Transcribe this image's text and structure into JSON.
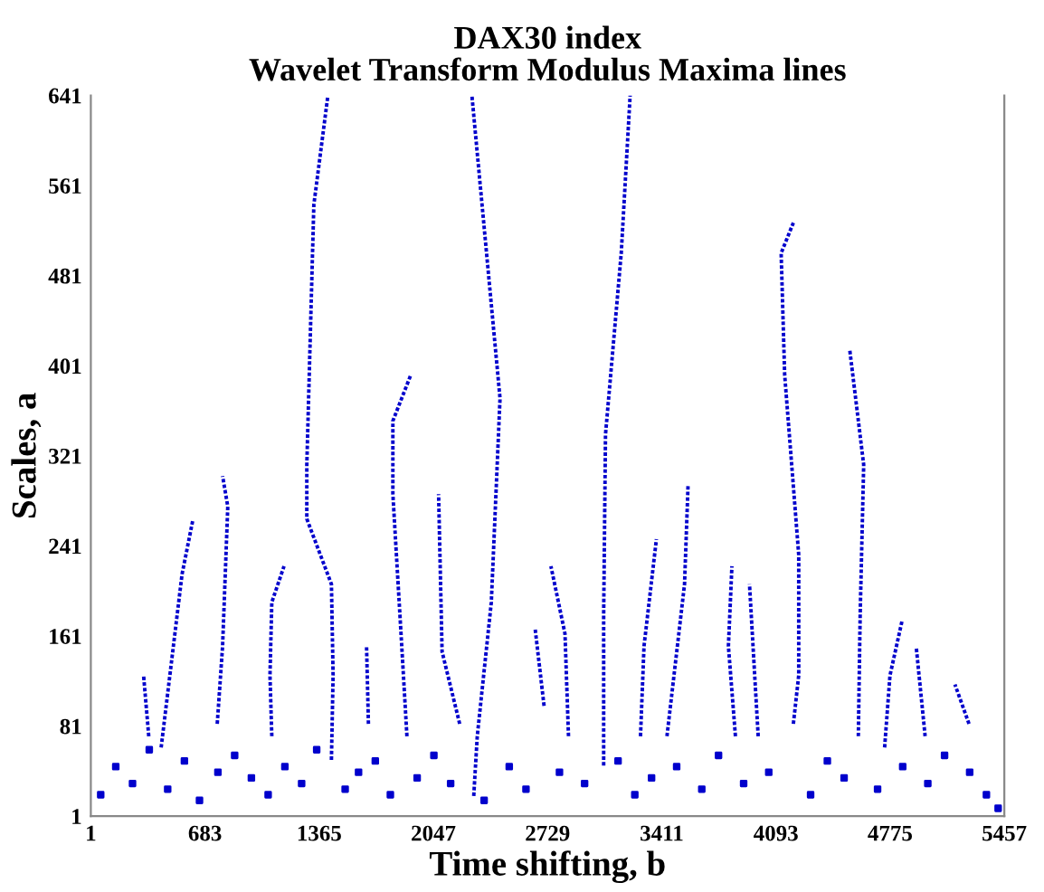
{
  "chart_data": {
    "type": "line",
    "title": "DAX30 index\nWavelet Transform Modulus Maxima lines",
    "xlabel": "Time shifting, b",
    "ylabel": "Scales, a",
    "xlim": [
      1,
      5457
    ],
    "ylim": [
      1,
      641
    ],
    "xticks": [
      1,
      683,
      1365,
      2047,
      2729,
      3411,
      4093,
      4775,
      5457
    ],
    "yticks": [
      1,
      81,
      161,
      241,
      321,
      401,
      481,
      561,
      641
    ],
    "grid": false,
    "line_style": "dotted",
    "marker": "none",
    "series": [
      {
        "color": "#0000cc",
        "x": [
          1438,
          1448,
          1438,
          1291,
          1291,
          1333,
          1417
        ],
        "values": [
          51,
          126,
          207,
          265,
          313,
          544,
          641
        ]
      },
      {
        "color": "#0000cc",
        "x": [
          2288,
          2309,
          2393,
          2445,
          2277
        ],
        "values": [
          19,
          72,
          191,
          372,
          641
        ]
      },
      {
        "color": "#0000cc",
        "x": [
          1889,
          1858,
          1805,
          1805,
          1910
        ],
        "values": [
          72,
          152,
          287,
          352,
          392
        ]
      },
      {
        "color": "#0000cc",
        "x": [
          2204,
          2099,
          2078
        ],
        "values": [
          83,
          147,
          287
        ]
      },
      {
        "color": "#0000cc",
        "x": [
          756,
          788,
          819,
          788
        ],
        "values": [
          83,
          152,
          276,
          303
        ]
      },
      {
        "color": "#0000cc",
        "x": [
          421,
          473,
          546,
          609
        ],
        "values": [
          62,
          126,
          216,
          263
        ]
      },
      {
        "color": "#0000cc",
        "x": [
          1082,
          1071,
          1082,
          1155
        ],
        "values": [
          72,
          126,
          191,
          223
        ]
      },
      {
        "color": "#0000cc",
        "x": [
          3064,
          3064,
          3075,
          3169,
          3222
        ],
        "values": [
          46,
          180,
          340,
          501,
          641
        ]
      },
      {
        "color": "#0000cc",
        "x": [
          4197,
          4229,
          4229,
          4145,
          4124,
          4197
        ],
        "values": [
          83,
          126,
          233,
          393,
          501,
          528
        ]
      },
      {
        "color": "#0000cc",
        "x": [
          4585,
          4596,
          4617,
          4533
        ],
        "values": [
          72,
          180,
          313,
          416
        ]
      },
      {
        "color": "#0000cc",
        "x": [
          3442,
          3484,
          3547,
          3568
        ],
        "values": [
          72,
          126,
          207,
          295
        ]
      },
      {
        "color": "#0000cc",
        "x": [
          3284,
          3305,
          3379
        ],
        "values": [
          72,
          152,
          247
        ]
      },
      {
        "color": "#0000cc",
        "x": [
          2854,
          2833,
          2749
        ],
        "values": [
          72,
          163,
          223
        ]
      },
      {
        "color": "#0000cc",
        "x": [
          3851,
          3809,
          3830
        ],
        "values": [
          72,
          152,
          223
        ]
      },
      {
        "color": "#0000cc",
        "x": [
          3987,
          3966,
          3935
        ],
        "values": [
          72,
          126,
          207
        ]
      },
      {
        "color": "#0000cc",
        "x": [
          4742,
          4774,
          4847
        ],
        "values": [
          62,
          126,
          175
        ]
      },
      {
        "color": "#0000cc",
        "x": [
          4984,
          4931
        ],
        "values": [
          72,
          151
        ]
      },
      {
        "color": "#0000cc",
        "x": [
          2708,
          2655
        ],
        "values": [
          99,
          167
        ]
      },
      {
        "color": "#0000cc",
        "x": [
          1659,
          1648
        ],
        "values": [
          83,
          151
        ]
      },
      {
        "color": "#0000cc",
        "x": [
          347,
          316
        ],
        "values": [
          72,
          126
        ]
      },
      {
        "color": "#0000cc",
        "x": [
          5246,
          5162
        ],
        "values": [
          83,
          118
        ]
      },
      {
        "type": "scatter",
        "marker": "square",
        "color": "#0000cc",
        "x": [
          60,
          150,
          250,
          350,
          460,
          560,
          650,
          760,
          860,
          960,
          1060,
          1160,
          1260,
          1350,
          1520,
          1600,
          1700,
          1790,
          1950,
          2050,
          2150,
          2350,
          2500,
          2600,
          2800,
          2950,
          3150,
          3250,
          3350,
          3500,
          3650,
          3750,
          3900,
          4050,
          4300,
          4400,
          4500,
          4700,
          4850,
          5000,
          5100,
          5250,
          5350,
          5420
        ],
        "values": [
          20,
          45,
          30,
          60,
          25,
          50,
          15,
          40,
          55,
          35,
          20,
          45,
          30,
          60,
          25,
          40,
          50,
          20,
          35,
          55,
          30,
          15,
          45,
          25,
          40,
          30,
          50,
          20,
          35,
          45,
          25,
          55,
          30,
          40,
          20,
          50,
          35,
          25,
          45,
          30,
          55,
          40,
          20,
          8
        ]
      }
    ]
  }
}
